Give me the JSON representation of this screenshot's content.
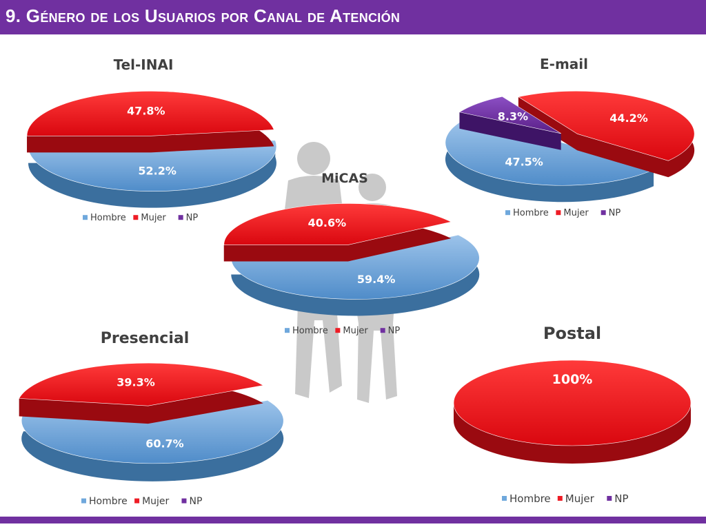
{
  "header": {
    "title": "9. Género de los Usuarios por Canal de Atención"
  },
  "colors": {
    "hombre": "#6fa8dc",
    "mujer": "#ee1c25",
    "np": "#7030a0",
    "title_bar": "#7030a0"
  },
  "chart_data": [
    {
      "type": "pie",
      "title": "Tel-INAI",
      "series": [
        {
          "name": "Hombre",
          "value": 52.2,
          "label": "52.2%"
        },
        {
          "name": "Mujer",
          "value": 47.8,
          "label": "47.8%"
        }
      ],
      "legend": [
        "Hombre",
        "Mujer",
        "NP"
      ],
      "legend_position": "bottom"
    },
    {
      "type": "pie",
      "title": "E-mail",
      "series": [
        {
          "name": "Hombre",
          "value": 47.5,
          "label": "47.5%"
        },
        {
          "name": "Mujer",
          "value": 44.2,
          "label": "44.2%"
        },
        {
          "name": "NP",
          "value": 8.3,
          "label": "8.3%"
        }
      ],
      "legend": [
        "Hombre",
        "Mujer",
        "NP"
      ],
      "legend_position": "bottom"
    },
    {
      "type": "pie",
      "title": "MiCAS",
      "series": [
        {
          "name": "Hombre",
          "value": 59.4,
          "label": "59.4%"
        },
        {
          "name": "Mujer",
          "value": 40.6,
          "label": "40.6%"
        }
      ],
      "legend": [
        "Hombre",
        "Mujer",
        "NP"
      ],
      "legend_position": "bottom"
    },
    {
      "type": "pie",
      "title": "Presencial",
      "series": [
        {
          "name": "Hombre",
          "value": 60.7,
          "label": "60.7%"
        },
        {
          "name": "Mujer",
          "value": 39.3,
          "label": "39.3%"
        }
      ],
      "legend": [
        "Hombre",
        "Mujer",
        "NP"
      ],
      "legend_position": "bottom"
    },
    {
      "type": "pie",
      "title": "Postal",
      "series": [
        {
          "name": "Mujer",
          "value": 100,
          "label": "100%"
        }
      ],
      "legend": [
        "Hombre",
        "Mujer",
        "NP"
      ],
      "legend_position": "bottom"
    }
  ]
}
